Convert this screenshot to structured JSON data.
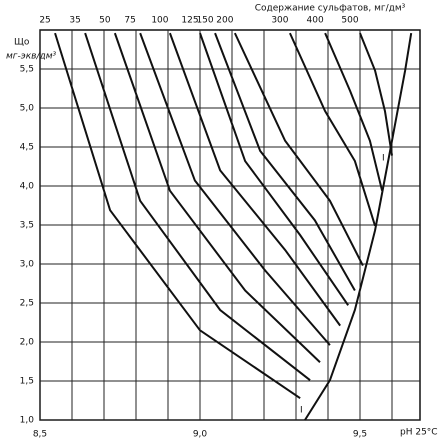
{
  "chart_data": {
    "type": "line",
    "title": "Содержание сульфатов, мг/дм³",
    "y_label": "Що",
    "y_unit": "мг-экв/дм³",
    "x_label": "pH 25°C",
    "annotations": [
      "I",
      "I"
    ],
    "color": "#111111",
    "grid": true,
    "xlim": [
      8.5,
      9.6875
    ],
    "ylim": [
      1.0,
      6.0
    ],
    "xticks": [
      {
        "value": 8.5,
        "label": "8,5"
      },
      {
        "value": 8.6,
        "label": null
      },
      {
        "value": 8.7,
        "label": null
      },
      {
        "value": 8.8,
        "label": null
      },
      {
        "value": 8.9,
        "label": null
      },
      {
        "value": 9.0,
        "label": "9,0"
      },
      {
        "value": 9.1,
        "label": null
      },
      {
        "value": 9.2,
        "label": null
      },
      {
        "value": 9.3,
        "label": null
      },
      {
        "value": 9.4,
        "label": null
      },
      {
        "value": 9.5,
        "label": "9,5"
      },
      {
        "value": 9.6,
        "label": null
      }
    ],
    "yticks": [
      {
        "value": 1.0,
        "label": "1,0"
      },
      {
        "value": 1.5,
        "label": "1,5"
      },
      {
        "value": 2.0,
        "label": "2,0"
      },
      {
        "value": 2.5,
        "label": "2,5"
      },
      {
        "value": 3.0,
        "label": "3,0"
      },
      {
        "value": 3.5,
        "label": "3,5"
      },
      {
        "value": 4.0,
        "label": "4,0"
      },
      {
        "value": 4.5,
        "label": "4,5"
      },
      {
        "value": 5.0,
        "label": "5,0"
      },
      {
        "value": 5.5,
        "label": "5,5"
      }
    ],
    "boundary": {
      "x": [
        9.328,
        9.406,
        9.484,
        9.547,
        9.594,
        9.641,
        9.66
      ],
      "values": [
        1.0,
        1.51,
        2.41,
        3.43,
        4.45,
        5.48,
        5.96
      ]
    },
    "series": [
      {
        "name": "25",
        "x": [
          8.547,
          8.719,
          9.0,
          9.313
        ],
        "values": [
          5.96,
          3.69,
          2.15,
          1.28
        ]
      },
      {
        "name": "35",
        "x": [
          8.641,
          8.813,
          9.063,
          9.344
        ],
        "values": [
          5.96,
          3.81,
          2.41,
          1.51
        ]
      },
      {
        "name": "50",
        "x": [
          8.734,
          8.906,
          9.141,
          9.375
        ],
        "values": [
          5.96,
          3.94,
          2.66,
          1.74
        ]
      },
      {
        "name": "75",
        "x": [
          8.813,
          8.984,
          9.203,
          9.406
        ],
        "values": [
          5.96,
          4.07,
          2.92,
          1.96
        ]
      },
      {
        "name": "100",
        "x": [
          8.906,
          9.063,
          9.266,
          9.438
        ],
        "values": [
          5.96,
          4.2,
          3.18,
          2.21
        ]
      },
      {
        "name": "125",
        "x": [
          9.0,
          9.141,
          9.313,
          9.463
        ],
        "values": [
          5.96,
          4.32,
          3.37,
          2.47
        ]
      },
      {
        "name": "150",
        "x": [
          9.047,
          9.188,
          9.359,
          9.484
        ],
        "values": [
          5.96,
          4.45,
          3.56,
          2.66
        ]
      },
      {
        "name": "200",
        "x": [
          9.109,
          9.266,
          9.406,
          9.509
        ],
        "values": [
          5.96,
          4.58,
          3.81,
          2.98
        ]
      },
      {
        "name": "300",
        "x": [
          9.281,
          9.391,
          9.484,
          9.547
        ],
        "values": [
          5.96,
          4.96,
          4.32,
          3.49
        ]
      },
      {
        "name": "400",
        "x": [
          9.391,
          9.469,
          9.531,
          9.569
        ],
        "values": [
          5.96,
          5.22,
          4.58,
          3.94
        ]
      },
      {
        "name": "500",
        "x": [
          9.5,
          9.547,
          9.578,
          9.6
        ],
        "values": [
          5.96,
          5.48,
          4.96,
          4.39
        ]
      }
    ]
  }
}
